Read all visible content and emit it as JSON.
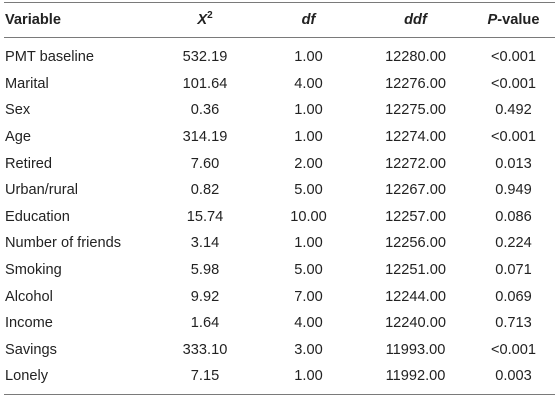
{
  "table": {
    "headers": {
      "variable": "Variable",
      "x2_base": "X",
      "x2_sup": "2",
      "df": "df",
      "ddf": "ddf",
      "p_italic": "P",
      "p_rest": "-value"
    },
    "rows": [
      {
        "variable": "PMT baseline",
        "x2": "532.19",
        "df": "1.00",
        "ddf": "12280.00",
        "p": "<0.001"
      },
      {
        "variable": "Marital",
        "x2": "101.64",
        "df": "4.00",
        "ddf": "12276.00",
        "p": "<0.001"
      },
      {
        "variable": "Sex",
        "x2": "0.36",
        "df": "1.00",
        "ddf": "12275.00",
        "p": "0.492"
      },
      {
        "variable": "Age",
        "x2": "314.19",
        "df": "1.00",
        "ddf": "12274.00",
        "p": "<0.001"
      },
      {
        "variable": "Retired",
        "x2": "7.60",
        "df": "2.00",
        "ddf": "12272.00",
        "p": "0.013"
      },
      {
        "variable": "Urban/rural",
        "x2": "0.82",
        "df": "5.00",
        "ddf": "12267.00",
        "p": "0.949"
      },
      {
        "variable": "Education",
        "x2": "15.74",
        "df": "10.00",
        "ddf": "12257.00",
        "p": "0.086"
      },
      {
        "variable": "Number of friends",
        "x2": "3.14",
        "df": "1.00",
        "ddf": "12256.00",
        "p": "0.224"
      },
      {
        "variable": "Smoking",
        "x2": "5.98",
        "df": "5.00",
        "ddf": "12251.00",
        "p": "0.071"
      },
      {
        "variable": "Alcohol",
        "x2": "9.92",
        "df": "7.00",
        "ddf": "12244.00",
        "p": "0.069"
      },
      {
        "variable": "Income",
        "x2": "1.64",
        "df": "4.00",
        "ddf": "12240.00",
        "p": "0.713"
      },
      {
        "variable": "Savings",
        "x2": "333.10",
        "df": "3.00",
        "ddf": "11993.00",
        "p": "<0.001"
      },
      {
        "variable": "Lonely",
        "x2": "7.15",
        "df": "1.00",
        "ddf": "11992.00",
        "p": "0.003"
      }
    ]
  }
}
